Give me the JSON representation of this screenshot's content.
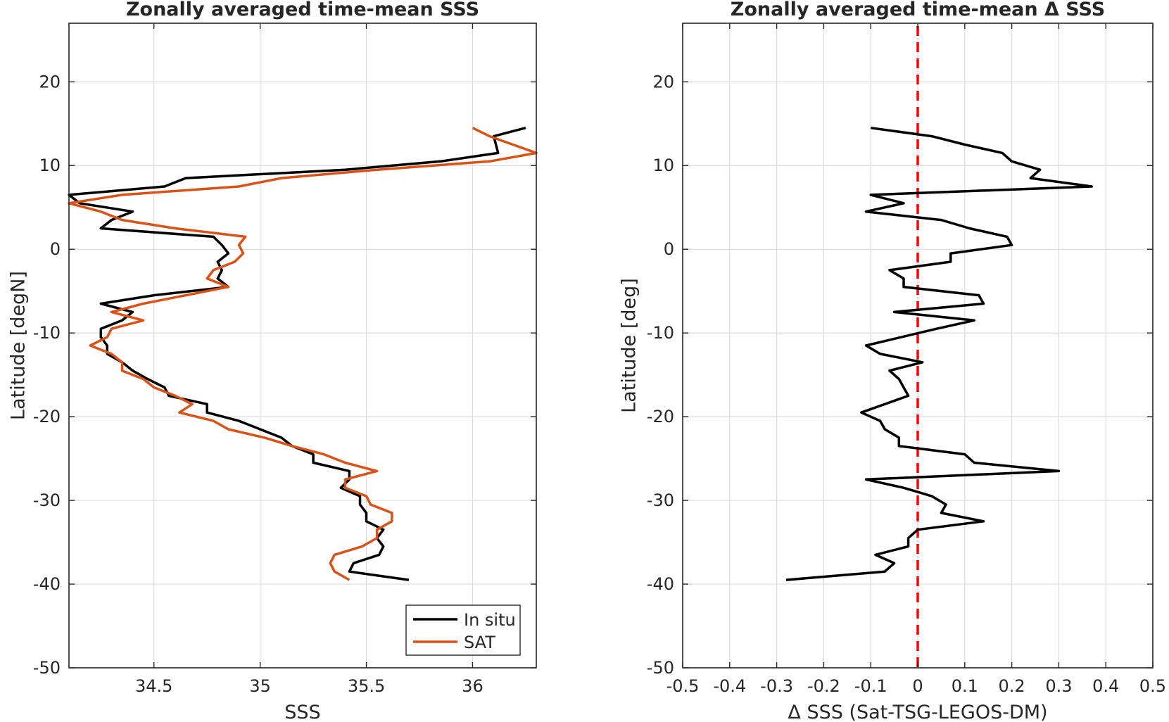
{
  "colors": {
    "in_situ": "#000000",
    "sat": "#d95319",
    "delta": "#000000",
    "zero_line": "#ff0000"
  },
  "chart_data": [
    {
      "type": "line",
      "title": "Zonally averaged time-mean SSS",
      "xlabel": "SSS",
      "ylabel": "Latitude [degN]",
      "xlim": [
        34.1,
        36.3
      ],
      "ylim": [
        -50,
        27
      ],
      "xticks": [
        34.5,
        35,
        35.5,
        36
      ],
      "xtick_labels": [
        "34.5",
        "35",
        "35.5",
        "36"
      ],
      "yticks": [
        -50,
        -40,
        -30,
        -20,
        -10,
        0,
        10,
        20
      ],
      "ytick_labels": [
        "-50",
        "-40",
        "-30",
        "-20",
        "-10",
        "0",
        "10",
        "20"
      ],
      "grid": true,
      "legend_position": "bottom-right",
      "series": [
        {
          "name": "In situ",
          "color_key": "in_situ",
          "points": [
            [
              36.25,
              14.5
            ],
            [
              36.1,
              13.5
            ],
            [
              36.12,
              11.5
            ],
            [
              35.85,
              10.5
            ],
            [
              35.4,
              9.5
            ],
            [
              34.65,
              8.5
            ],
            [
              34.55,
              7.5
            ],
            [
              34.1,
              6.5
            ],
            [
              34.15,
              5.5
            ],
            [
              34.4,
              4.5
            ],
            [
              34.3,
              3.5
            ],
            [
              34.25,
              2.5
            ],
            [
              34.78,
              1.5
            ],
            [
              34.82,
              0.5
            ],
            [
              34.85,
              -0.5
            ],
            [
              34.8,
              -1.5
            ],
            [
              34.82,
              -2.5
            ],
            [
              34.8,
              -3.5
            ],
            [
              34.85,
              -4.5
            ],
            [
              34.5,
              -5.5
            ],
            [
              34.25,
              -6.5
            ],
            [
              34.4,
              -7.5
            ],
            [
              34.35,
              -8.5
            ],
            [
              34.25,
              -9.5
            ],
            [
              34.25,
              -10.5
            ],
            [
              34.28,
              -11.5
            ],
            [
              34.28,
              -12.5
            ],
            [
              34.35,
              -13.5
            ],
            [
              34.4,
              -14.5
            ],
            [
              34.47,
              -15.5
            ],
            [
              34.55,
              -16.5
            ],
            [
              34.57,
              -17.5
            ],
            [
              34.75,
              -18.5
            ],
            [
              34.75,
              -19.5
            ],
            [
              34.9,
              -20.5
            ],
            [
              35.0,
              -21.5
            ],
            [
              35.1,
              -22.5
            ],
            [
              35.15,
              -23.5
            ],
            [
              35.25,
              -24.5
            ],
            [
              35.25,
              -25.5
            ],
            [
              35.42,
              -26.5
            ],
            [
              35.42,
              -27.5
            ],
            [
              35.38,
              -28.5
            ],
            [
              35.47,
              -29.5
            ],
            [
              35.47,
              -30.5
            ],
            [
              35.5,
              -31.5
            ],
            [
              35.5,
              -32.5
            ],
            [
              35.58,
              -33.5
            ],
            [
              35.55,
              -34.5
            ],
            [
              35.58,
              -35.5
            ],
            [
              35.56,
              -36.5
            ],
            [
              35.44,
              -37.5
            ],
            [
              35.42,
              -38.5
            ],
            [
              35.7,
              -39.5
            ]
          ]
        },
        {
          "name": "SAT",
          "color_key": "sat",
          "points": [
            [
              36.0,
              14.5
            ],
            [
              36.08,
              13.5
            ],
            [
              36.3,
              11.5
            ],
            [
              36.08,
              10.5
            ],
            [
              35.55,
              9.5
            ],
            [
              35.1,
              8.5
            ],
            [
              34.9,
              7.5
            ],
            [
              34.35,
              6.5
            ],
            [
              34.1,
              5.5
            ],
            [
              34.25,
              4.5
            ],
            [
              34.35,
              3.5
            ],
            [
              34.6,
              2.5
            ],
            [
              34.93,
              1.5
            ],
            [
              34.9,
              0.5
            ],
            [
              34.92,
              -0.5
            ],
            [
              34.88,
              -1.5
            ],
            [
              34.78,
              -2.5
            ],
            [
              34.75,
              -3.5
            ],
            [
              34.85,
              -4.5
            ],
            [
              34.65,
              -5.5
            ],
            [
              34.45,
              -6.5
            ],
            [
              34.3,
              -7.5
            ],
            [
              34.45,
              -8.5
            ],
            [
              34.3,
              -9.5
            ],
            [
              34.28,
              -10.5
            ],
            [
              34.2,
              -11.5
            ],
            [
              34.3,
              -12.5
            ],
            [
              34.35,
              -13.5
            ],
            [
              34.35,
              -14.5
            ],
            [
              34.45,
              -15.5
            ],
            [
              34.5,
              -16.5
            ],
            [
              34.6,
              -17.5
            ],
            [
              34.68,
              -18.5
            ],
            [
              34.62,
              -19.5
            ],
            [
              34.78,
              -20.5
            ],
            [
              34.85,
              -21.5
            ],
            [
              35.02,
              -22.5
            ],
            [
              35.15,
              -23.5
            ],
            [
              35.3,
              -24.5
            ],
            [
              35.4,
              -25.5
            ],
            [
              35.55,
              -26.5
            ],
            [
              35.4,
              -27.5
            ],
            [
              35.4,
              -28.5
            ],
            [
              35.5,
              -29.5
            ],
            [
              35.52,
              -30.5
            ],
            [
              35.62,
              -31.5
            ],
            [
              35.62,
              -32.5
            ],
            [
              35.55,
              -33.5
            ],
            [
              35.55,
              -34.5
            ],
            [
              35.48,
              -35.5
            ],
            [
              35.35,
              -36.5
            ],
            [
              35.33,
              -37.5
            ],
            [
              35.35,
              -38.5
            ],
            [
              35.42,
              -39.5
            ]
          ]
        }
      ]
    },
    {
      "type": "line",
      "title": "Zonally averaged time-mean Δ SSS",
      "xlabel": "Δ SSS (Sat-TSG-LEGOS-DM)",
      "ylabel": "Latitude [deg]",
      "xlim": [
        -0.5,
        0.5
      ],
      "ylim": [
        -50,
        27
      ],
      "xticks": [
        -0.5,
        -0.4,
        -0.3,
        -0.2,
        -0.1,
        0,
        0.1,
        0.2,
        0.3,
        0.4,
        0.5
      ],
      "xtick_labels": [
        "-0.5",
        "-0.4",
        "-0.3",
        "-0.2",
        "-0.1",
        "0",
        "0.1",
        "0.2",
        "0.3",
        "0.4",
        "0.5"
      ],
      "yticks": [
        -50,
        -40,
        -30,
        -20,
        -10,
        0,
        10,
        20
      ],
      "ytick_labels": [
        "-50",
        "-40",
        "-30",
        "-20",
        "-10",
        "0",
        "10",
        "20"
      ],
      "grid": true,
      "reference_line": {
        "x": 0,
        "style": "dashed",
        "color_key": "zero_line"
      },
      "series": [
        {
          "color_key": "delta",
          "points": [
            [
              -0.1,
              14.5
            ],
            [
              0.03,
              13.5
            ],
            [
              0.1,
              12.5
            ],
            [
              0.18,
              11.5
            ],
            [
              0.2,
              10.5
            ],
            [
              0.26,
              9.5
            ],
            [
              0.24,
              8.5
            ],
            [
              0.37,
              7.5
            ],
            [
              -0.1,
              6.5
            ],
            [
              -0.03,
              5.5
            ],
            [
              -0.11,
              4.5
            ],
            [
              0.05,
              3.5
            ],
            [
              0.11,
              2.5
            ],
            [
              0.19,
              1.5
            ],
            [
              0.2,
              0.5
            ],
            [
              0.07,
              -0.5
            ],
            [
              0.07,
              -1.5
            ],
            [
              -0.06,
              -2.5
            ],
            [
              -0.03,
              -3.5
            ],
            [
              -0.03,
              -4.5
            ],
            [
              0.13,
              -5.5
            ],
            [
              0.14,
              -6.5
            ],
            [
              -0.05,
              -7.5
            ],
            [
              0.12,
              -8.5
            ],
            [
              0.04,
              -9.5
            ],
            [
              -0.11,
              -11.5
            ],
            [
              -0.08,
              -12.5
            ],
            [
              0.01,
              -13.5
            ],
            [
              -0.06,
              -14.5
            ],
            [
              -0.04,
              -15.5
            ],
            [
              -0.03,
              -16.5
            ],
            [
              -0.02,
              -17.5
            ],
            [
              -0.07,
              -18.5
            ],
            [
              -0.12,
              -19.5
            ],
            [
              -0.08,
              -20.5
            ],
            [
              -0.07,
              -21.5
            ],
            [
              -0.04,
              -22.5
            ],
            [
              -0.04,
              -23.5
            ],
            [
              0.1,
              -24.5
            ],
            [
              0.12,
              -25.5
            ],
            [
              0.3,
              -26.5
            ],
            [
              -0.11,
              -27.5
            ],
            [
              -0.03,
              -28.5
            ],
            [
              0.03,
              -29.5
            ],
            [
              0.06,
              -30.5
            ],
            [
              0.05,
              -31.5
            ],
            [
              0.14,
              -32.5
            ],
            [
              0.0,
              -33.5
            ],
            [
              -0.02,
              -34.5
            ],
            [
              -0.02,
              -35.5
            ],
            [
              -0.09,
              -36.5
            ],
            [
              -0.05,
              -37.5
            ],
            [
              -0.07,
              -38.5
            ],
            [
              -0.28,
              -39.5
            ]
          ]
        }
      ]
    }
  ]
}
